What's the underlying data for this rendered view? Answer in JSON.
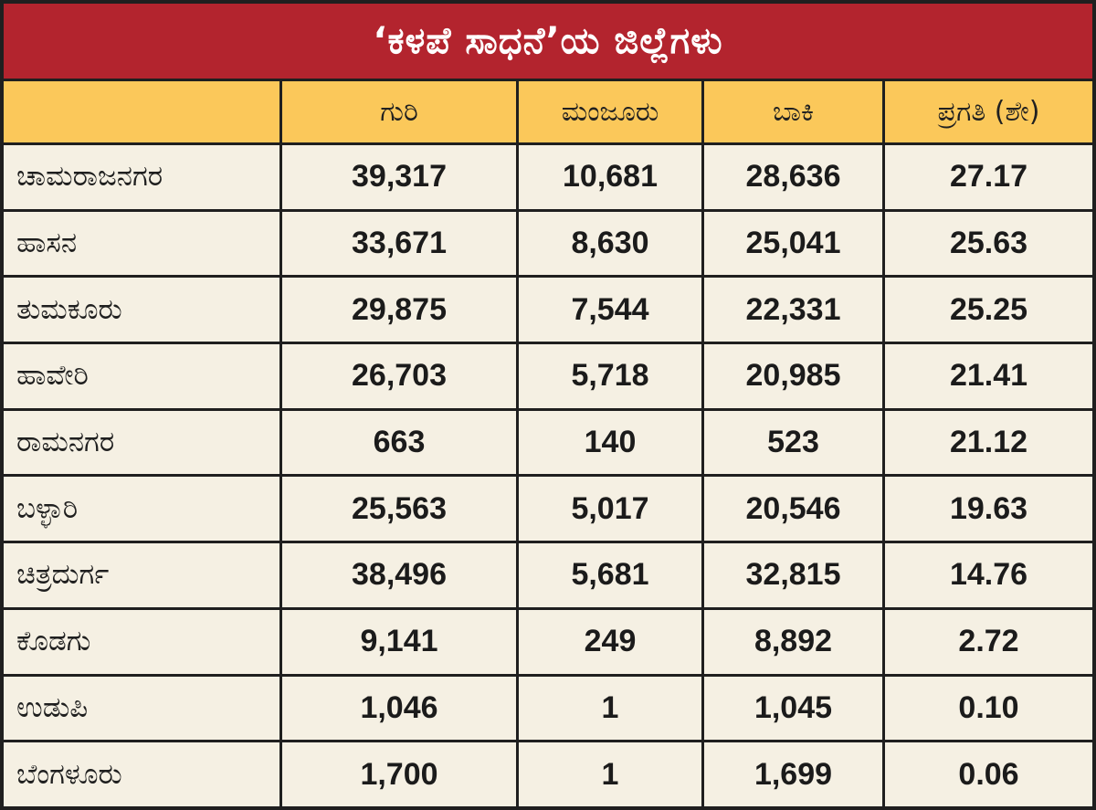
{
  "title": "‘ಕಳಪೆ ಸಾಧನೆ’ಯ ಜಿಲ್ಲೆಗಳು",
  "chart_data": {
    "type": "table",
    "title": "‘ಕಳಪೆ ಸಾಧನೆ’ಯ ಜಿಲ್ಲೆಗಳು",
    "columns": [
      "",
      "ಗುರಿ",
      "ಮಂಜೂರು",
      "ಬಾಕಿ",
      "ಪ್ರಗತಿ (ಶೇ)"
    ],
    "rows": [
      {
        "district": "ಚಾಮರಾಜನಗರ",
        "target": "39,317",
        "sanctioned": "10,681",
        "pending": "28,636",
        "progress": "27.17"
      },
      {
        "district": "ಹಾಸನ",
        "target": "33,671",
        "sanctioned": "8,630",
        "pending": "25,041",
        "progress": "25.63"
      },
      {
        "district": "ತುಮಕೂರು",
        "target": "29,875",
        "sanctioned": "7,544",
        "pending": "22,331",
        "progress": "25.25"
      },
      {
        "district": "ಹಾವೇರಿ",
        "target": "26,703",
        "sanctioned": "5,718",
        "pending": "20,985",
        "progress": "21.41"
      },
      {
        "district": "ರಾಮನಗರ",
        "target": "663",
        "sanctioned": "140",
        "pending": "523",
        "progress": "21.12"
      },
      {
        "district": "ಬಳ್ಳಾರಿ",
        "target": "25,563",
        "sanctioned": "5,017",
        "pending": "20,546",
        "progress": "19.63"
      },
      {
        "district": "ಚಿತ್ರದುರ್ಗ",
        "target": "38,496",
        "sanctioned": "5,681",
        "pending": "32,815",
        "progress": "14.76"
      },
      {
        "district": "ಕೊಡಗು",
        "target": "9,141",
        "sanctioned": "249",
        "pending": "8,892",
        "progress": "2.72"
      },
      {
        "district": "ಉಡುಪಿ",
        "target": "1,046",
        "sanctioned": "1",
        "pending": "1,045",
        "progress": "0.10"
      },
      {
        "district": "ಬೆಂಗಳೂರು",
        "target": "1,700",
        "sanctioned": "1",
        "pending": "1,699",
        "progress": "0.06"
      }
    ]
  },
  "colors": {
    "title_bg": "#b3242e",
    "header_bg": "#fbc85a",
    "cell_bg": "#f5f0e3",
    "border": "#1f1f1f"
  }
}
